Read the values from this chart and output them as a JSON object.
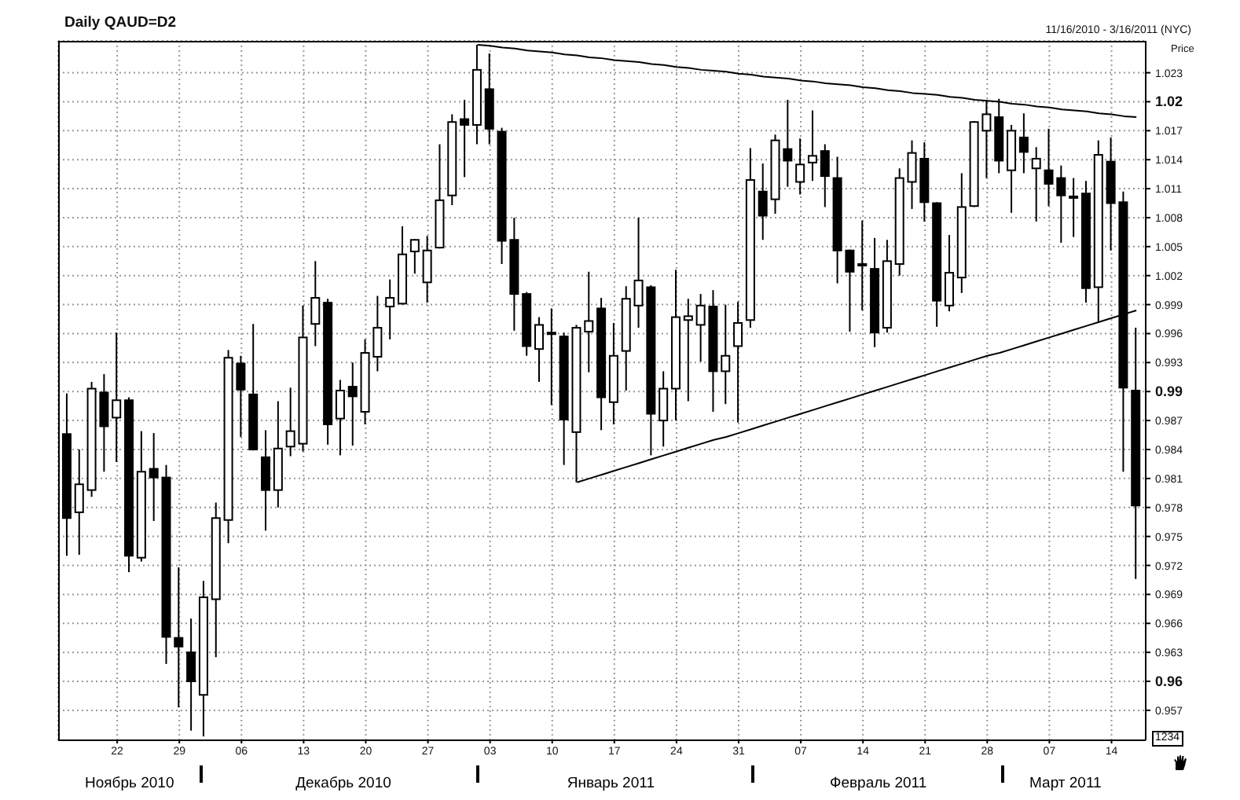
{
  "chart_data": {
    "type": "candlestick",
    "title": "Daily QAUD=D2",
    "subtitle": "11/16/2010 - 3/16/2011 (NYC)",
    "ylabel": "Price",
    "color": "#000000",
    "categories": [
      null,
      null,
      null,
      null,
      "22",
      null,
      null,
      null,
      null,
      "29",
      null,
      null,
      null,
      null,
      "06",
      null,
      null,
      null,
      null,
      "13",
      null,
      null,
      null,
      null,
      "20",
      null,
      null,
      null,
      null,
      "27",
      null,
      null,
      null,
      null,
      "03",
      null,
      null,
      null,
      null,
      "10",
      null,
      null,
      null,
      null,
      "17",
      null,
      null,
      null,
      null,
      "24",
      null,
      null,
      null,
      null,
      "31",
      null,
      null,
      null,
      null,
      "07",
      null,
      null,
      null,
      null,
      "14",
      null,
      null,
      null,
      null,
      "21",
      null,
      null,
      null,
      null,
      "28",
      null,
      null,
      null,
      null,
      "07",
      null,
      null,
      null,
      null,
      "14",
      null,
      null
    ],
    "ohlc": [
      [
        0.9856,
        0.9898,
        0.973,
        0.9769
      ],
      [
        0.9775,
        0.984,
        0.9731,
        0.9804
      ],
      [
        0.9798,
        0.991,
        0.9791,
        0.9903
      ],
      [
        0.9899,
        0.9918,
        0.9817,
        0.9864
      ],
      [
        0.9873,
        0.9961,
        0.9827,
        0.9891
      ],
      [
        0.9891,
        0.9894,
        0.9713,
        0.973
      ],
      [
        0.9728,
        0.9859,
        0.9724,
        0.9817
      ],
      [
        0.982,
        0.9857,
        0.9766,
        0.9811
      ],
      [
        0.9811,
        0.9824,
        0.9618,
        0.9646
      ],
      [
        0.9645,
        0.9718,
        0.9573,
        0.9636
      ],
      [
        0.963,
        0.9665,
        0.9549,
        0.96
      ],
      [
        0.9586,
        0.9704,
        0.9543,
        0.9687
      ],
      [
        0.9685,
        0.9785,
        0.9625,
        0.9769
      ],
      [
        0.9767,
        0.9943,
        0.9743,
        0.9935
      ],
      [
        0.9929,
        0.9937,
        0.9853,
        0.9902
      ],
      [
        0.9897,
        0.997,
        0.9839,
        0.984
      ],
      [
        0.9832,
        0.986,
        0.9756,
        0.9798
      ],
      [
        0.9798,
        0.989,
        0.978,
        0.9841
      ],
      [
        0.9843,
        0.9904,
        0.9833,
        0.9859
      ],
      [
        0.9846,
        0.9989,
        0.9838,
        0.9956
      ],
      [
        0.997,
        1.0035,
        0.9947,
        0.9997
      ],
      [
        0.9992,
        0.9996,
        0.9845,
        0.9866
      ],
      [
        0.9872,
        0.9912,
        0.9834,
        0.9901
      ],
      [
        0.9905,
        0.993,
        0.9844,
        0.9895
      ],
      [
        0.9879,
        0.9954,
        0.9866,
        0.994
      ],
      [
        0.9936,
        0.9999,
        0.9921,
        0.9966
      ],
      [
        0.9988,
        1.0016,
        0.9954,
        0.9997
      ],
      [
        0.9991,
        1.0071,
        0.999,
        1.0042
      ],
      [
        1.0045,
        1.0058,
        1.0022,
        1.0057
      ],
      [
        1.0013,
        1.0061,
        0.9992,
        1.0046
      ],
      [
        1.0049,
        1.0156,
        1.0048,
        1.0098
      ],
      [
        1.0103,
        1.0187,
        1.0093,
        1.0179
      ],
      [
        1.0182,
        1.0202,
        1.0122,
        1.0176
      ],
      [
        1.0176,
        1.0259,
        1.0156,
        1.0233
      ],
      [
        1.0213,
        1.025,
        1.0156,
        1.0172
      ],
      [
        1.0169,
        1.0173,
        1.0032,
        1.0056
      ],
      [
        1.0057,
        1.008,
        0.9963,
        1.0001
      ],
      [
        1.0001,
        1.0003,
        0.9937,
        0.9947
      ],
      [
        0.9944,
        0.9977,
        0.991,
        0.9969
      ],
      [
        0.9961,
        0.9986,
        0.9886,
        0.996
      ],
      [
        0.9957,
        0.9961,
        0.9824,
        0.9871
      ],
      [
        0.9858,
        0.9969,
        0.9806,
        0.9966
      ],
      [
        0.9962,
        1.0024,
        0.992,
        0.9973
      ],
      [
        0.9986,
        0.9997,
        0.986,
        0.9894
      ],
      [
        0.9889,
        0.9971,
        0.9866,
        0.9937
      ],
      [
        0.9942,
        1.0009,
        0.9901,
        0.9996
      ],
      [
        0.9989,
        1.008,
        0.9966,
        1.0015
      ],
      [
        1.0008,
        1.001,
        0.9834,
        0.9877
      ],
      [
        0.987,
        0.9921,
        0.9843,
        0.9903
      ],
      [
        0.9903,
        1.0026,
        0.987,
        0.9977
      ],
      [
        0.9974,
        0.9996,
        0.989,
        0.9978
      ],
      [
        0.9969,
        1.0001,
        0.9931,
        0.9989
      ],
      [
        0.9988,
        1.0005,
        0.9879,
        0.9921
      ],
      [
        0.9921,
        0.999,
        0.9887,
        0.9937
      ],
      [
        0.9947,
        0.9993,
        0.9868,
        0.9971
      ],
      [
        0.9974,
        1.0152,
        0.9966,
        1.0119
      ],
      [
        1.0107,
        1.0136,
        1.0057,
        1.0082
      ],
      [
        1.0099,
        1.0166,
        1.0084,
        1.016
      ],
      [
        1.0151,
        1.0202,
        1.0112,
        1.0139
      ],
      [
        1.0117,
        1.0162,
        1.0104,
        1.0135
      ],
      [
        1.0137,
        1.0191,
        1.0118,
        1.0144
      ],
      [
        1.0149,
        1.0156,
        1.0091,
        1.0123
      ],
      [
        1.0121,
        1.0143,
        1.0012,
        1.0046
      ],
      [
        1.0046,
        1.0047,
        0.9962,
        1.0024
      ],
      [
        1.0032,
        1.0077,
        0.9984,
        1.0032
      ],
      [
        1.0027,
        1.0059,
        0.9946,
        0.9961
      ],
      [
        0.9966,
        1.0057,
        0.9961,
        1.0035
      ],
      [
        1.0032,
        1.0131,
        1.002,
        1.0121
      ],
      [
        1.0117,
        1.016,
        1.0089,
        1.0147
      ],
      [
        1.0141,
        1.0158,
        1.0076,
        1.0096
      ],
      [
        1.0095,
        1.0096,
        0.9967,
        0.9994
      ],
      [
        0.9989,
        1.0062,
        0.9983,
        1.0023
      ],
      [
        1.0018,
        1.0126,
        1.0002,
        1.0091
      ],
      [
        1.0092,
        1.018,
        1.0091,
        1.0179
      ],
      [
        1.017,
        1.0202,
        1.0121,
        1.0187
      ],
      [
        1.0184,
        1.0203,
        1.0126,
        1.0139
      ],
      [
        1.0129,
        1.0176,
        1.0085,
        1.017
      ],
      [
        1.0163,
        1.0188,
        1.0126,
        1.0148
      ],
      [
        1.0131,
        1.0153,
        1.0076,
        1.0141
      ],
      [
        1.0129,
        1.0172,
        1.0092,
        1.0115
      ],
      [
        1.0121,
        1.0134,
        1.0054,
        1.0103
      ],
      [
        1.0102,
        1.0121,
        1.006,
        1.0101
      ],
      [
        1.0105,
        1.0118,
        0.9992,
        1.0007
      ],
      [
        1.0008,
        1.016,
        0.9971,
        1.0145
      ],
      [
        1.0138,
        1.0163,
        1.0046,
        1.0095
      ],
      [
        1.0096,
        1.0107,
        0.9817,
        0.9904
      ],
      [
        0.9901,
        0.9966,
        0.9706,
        0.9782
      ]
    ],
    "series": [
      {
        "type": "line",
        "color": "#000000",
        "values": [
          null,
          null,
          null,
          null,
          null,
          null,
          null,
          null,
          null,
          null,
          null,
          null,
          null,
          null,
          null,
          null,
          null,
          null,
          null,
          null,
          null,
          null,
          null,
          null,
          null,
          null,
          null,
          null,
          null,
          null,
          null,
          null,
          null,
          1.0259,
          1.0258,
          1.0256,
          1.0255,
          1.0253,
          1.0252,
          1.0251,
          1.0249,
          1.0248,
          1.0246,
          1.0245,
          1.0243,
          1.0242,
          1.0241,
          1.0239,
          1.0238,
          1.0236,
          1.0235,
          1.0233,
          1.0232,
          1.0231,
          1.0229,
          1.0228,
          1.0226,
          1.0225,
          1.0224,
          1.0222,
          1.0221,
          1.0219,
          1.0218,
          1.0217,
          1.0215,
          1.0214,
          1.0212,
          1.0211,
          1.0209,
          1.0208,
          1.0207,
          1.0205,
          1.0204,
          1.0202,
          1.0201,
          1.02,
          1.0198,
          1.0197,
          1.0195,
          1.0194,
          1.0192,
          1.0191,
          1.019,
          1.0188,
          1.0187,
          1.0185,
          1.0184
        ]
      },
      {
        "type": "line",
        "color": "#000000",
        "values": [
          null,
          null,
          null,
          null,
          null,
          null,
          null,
          null,
          null,
          null,
          null,
          null,
          null,
          null,
          null,
          null,
          null,
          null,
          null,
          null,
          null,
          null,
          null,
          null,
          null,
          null,
          null,
          null,
          null,
          null,
          null,
          null,
          null,
          null,
          null,
          null,
          null,
          null,
          null,
          null,
          null,
          0.9806,
          0.981,
          0.9814,
          0.9818,
          0.9822,
          0.9826,
          0.983,
          0.9834,
          0.9838,
          0.9842,
          0.9846,
          0.985,
          0.9853,
          0.9857,
          0.9861,
          0.9865,
          0.9869,
          0.9873,
          0.9877,
          0.9881,
          0.9885,
          0.9889,
          0.9893,
          0.9897,
          0.9901,
          0.9905,
          0.9909,
          0.9913,
          0.9917,
          0.9921,
          0.9925,
          0.9929,
          0.9933,
          0.9937,
          0.994,
          0.9944,
          0.9948,
          0.9952,
          0.9956,
          0.996,
          0.9964,
          0.9968,
          0.9972,
          0.9976,
          0.998,
          0.9984
        ]
      }
    ],
    "x2lim": [
      "2010-11-15",
      "2011-03-17"
    ],
    "x2ticks": [
      {
        "value": "2010-11-23",
        "label": "Ноябрь 2010"
      },
      {
        "value": "2010-12-17",
        "label": "Декабрь 2010"
      },
      {
        "value": "2011-01-16",
        "label": "Январь 2011"
      },
      {
        "value": "2011-02-15",
        "label": "Февраль 2011"
      },
      {
        "value": "2011-03-08",
        "label": "Март 2011"
      }
    ],
    "ylim": [
      0.9539,
      1.0263
    ],
    "yticks": [
      0.957,
      0.96,
      0.963,
      0.966,
      0.969,
      0.972,
      0.975,
      0.978,
      0.981,
      0.984,
      0.987,
      0.99,
      0.993,
      0.996,
      0.999,
      1.002,
      1.005,
      1.008,
      1.011,
      1.014,
      1.017,
      1.02,
      1.023
    ],
    "grid": true,
    "annotations": [
      "1234"
    ]
  }
}
